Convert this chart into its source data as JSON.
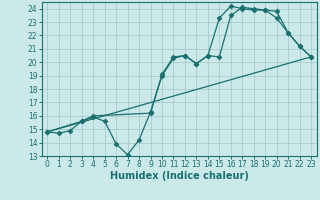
{
  "title": "",
  "xlabel": "Humidex (Indice chaleur)",
  "bg_color": "#cce9e9",
  "grid_color": "#aacccc",
  "line_color": "#1a7070",
  "xlim": [
    -0.5,
    23.5
  ],
  "ylim": [
    13,
    24.5
  ],
  "xticks": [
    0,
    1,
    2,
    3,
    4,
    5,
    6,
    7,
    8,
    9,
    10,
    11,
    12,
    13,
    14,
    15,
    16,
    17,
    18,
    19,
    20,
    21,
    22,
    23
  ],
  "yticks": [
    13,
    14,
    15,
    16,
    17,
    18,
    19,
    20,
    21,
    22,
    23,
    24
  ],
  "series1_x": [
    0,
    1,
    2,
    3,
    4,
    5,
    6,
    7,
    8,
    9,
    10,
    11,
    12,
    13,
    14,
    15,
    16,
    17,
    18,
    19,
    20,
    21,
    22,
    23
  ],
  "series1_y": [
    14.8,
    14.7,
    14.9,
    15.6,
    15.9,
    15.6,
    13.9,
    13.1,
    14.2,
    16.3,
    19.0,
    20.3,
    20.5,
    19.9,
    20.5,
    20.4,
    23.5,
    24.1,
    24.0,
    23.9,
    23.8,
    22.2,
    21.2,
    20.4
  ],
  "series2_x": [
    0,
    3,
    4,
    9,
    10,
    11,
    12,
    13,
    14,
    15,
    16,
    17,
    18,
    19,
    20,
    21,
    22,
    23
  ],
  "series2_y": [
    14.8,
    15.6,
    16.0,
    16.2,
    19.1,
    20.4,
    20.5,
    19.9,
    20.5,
    23.3,
    24.2,
    24.0,
    23.9,
    23.9,
    23.3,
    22.2,
    21.2,
    20.4
  ],
  "series3_x": [
    0,
    23
  ],
  "series3_y": [
    14.8,
    20.4
  ]
}
